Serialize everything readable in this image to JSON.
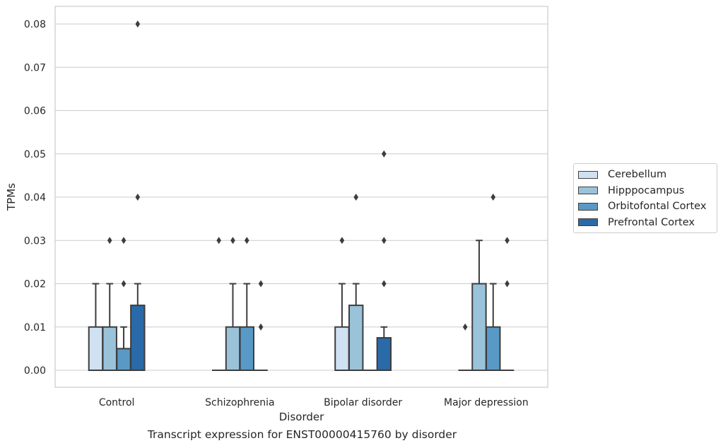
{
  "chart_data": {
    "type": "box",
    "caption": "Transcript expression for ENST00000415760 by disorder",
    "xlabel": "Disorder",
    "ylabel": "TPMs",
    "ylim": [
      -0.004,
      0.084
    ],
    "yticks": [
      "0.00",
      "0.01",
      "0.02",
      "0.03",
      "0.04",
      "0.05",
      "0.06",
      "0.07",
      "0.08"
    ],
    "grid": true,
    "legend_position": "right",
    "categories": [
      "Control",
      "Schizophrenia",
      "Bipolar disorder",
      "Major depression"
    ],
    "series": [
      {
        "name": "Cerebellum",
        "color": "#d0e1f2",
        "boxes": [
          {
            "q1": 0,
            "median": 0,
            "q3": 0.01,
            "whisker_low": 0,
            "whisker_high": 0.02,
            "outliers": []
          },
          {
            "q1": 0,
            "median": 0,
            "q3": 0,
            "whisker_low": 0,
            "whisker_high": 0,
            "outliers": [
              0.03
            ]
          },
          {
            "q1": 0,
            "median": 0,
            "q3": 0.01,
            "whisker_low": 0,
            "whisker_high": 0.02,
            "outliers": [
              0.03
            ]
          },
          {
            "q1": 0,
            "median": 0,
            "q3": 0,
            "whisker_low": 0,
            "whisker_high": 0,
            "outliers": [
              0.01
            ]
          }
        ]
      },
      {
        "name": "Hipppocampus",
        "color": "#9ac3da",
        "boxes": [
          {
            "q1": 0,
            "median": 0,
            "q3": 0.01,
            "whisker_low": 0,
            "whisker_high": 0.02,
            "outliers": [
              0.03
            ]
          },
          {
            "q1": 0,
            "median": 0,
            "q3": 0.01,
            "whisker_low": 0,
            "whisker_high": 0.02,
            "outliers": [
              0.03
            ]
          },
          {
            "q1": 0,
            "median": 0,
            "q3": 0.015,
            "whisker_low": 0,
            "whisker_high": 0.02,
            "outliers": [
              0.04
            ]
          },
          {
            "q1": 0,
            "median": 0,
            "q3": 0.02,
            "whisker_low": 0,
            "whisker_high": 0.03,
            "outliers": []
          }
        ]
      },
      {
        "name": "Orbitofontal Cortex",
        "color": "#5899c6",
        "boxes": [
          {
            "q1": 0,
            "median": 0,
            "q3": 0.005,
            "whisker_low": 0,
            "whisker_high": 0.01,
            "outliers": [
              0.02,
              0.03
            ]
          },
          {
            "q1": 0,
            "median": 0,
            "q3": 0.01,
            "whisker_low": 0,
            "whisker_high": 0.02,
            "outliers": [
              0.03
            ]
          },
          {
            "q1": 0,
            "median": 0,
            "q3": 0,
            "whisker_low": 0,
            "whisker_high": 0,
            "outliers": []
          },
          {
            "q1": 0,
            "median": 0,
            "q3": 0.01,
            "whisker_low": 0,
            "whisker_high": 0.02,
            "outliers": [
              0.04
            ]
          }
        ]
      },
      {
        "name": "Prefrontal Cortex",
        "color": "#2a6aa9",
        "boxes": [
          {
            "q1": 0,
            "median": 0,
            "q3": 0.015,
            "whisker_low": 0,
            "whisker_high": 0.02,
            "outliers": [
              0.04,
              0.08
            ]
          },
          {
            "q1": 0,
            "median": 0,
            "q3": 0,
            "whisker_low": 0,
            "whisker_high": 0,
            "outliers": [
              0.01,
              0.02
            ]
          },
          {
            "q1": 0,
            "median": 0,
            "q3": 0.0075,
            "whisker_low": 0,
            "whisker_high": 0.01,
            "outliers": [
              0.02,
              0.03,
              0.05
            ]
          },
          {
            "q1": 0,
            "median": 0,
            "q3": 0,
            "whisker_low": 0,
            "whisker_high": 0,
            "outliers": [
              0.02,
              0.03
            ]
          }
        ]
      }
    ]
  }
}
